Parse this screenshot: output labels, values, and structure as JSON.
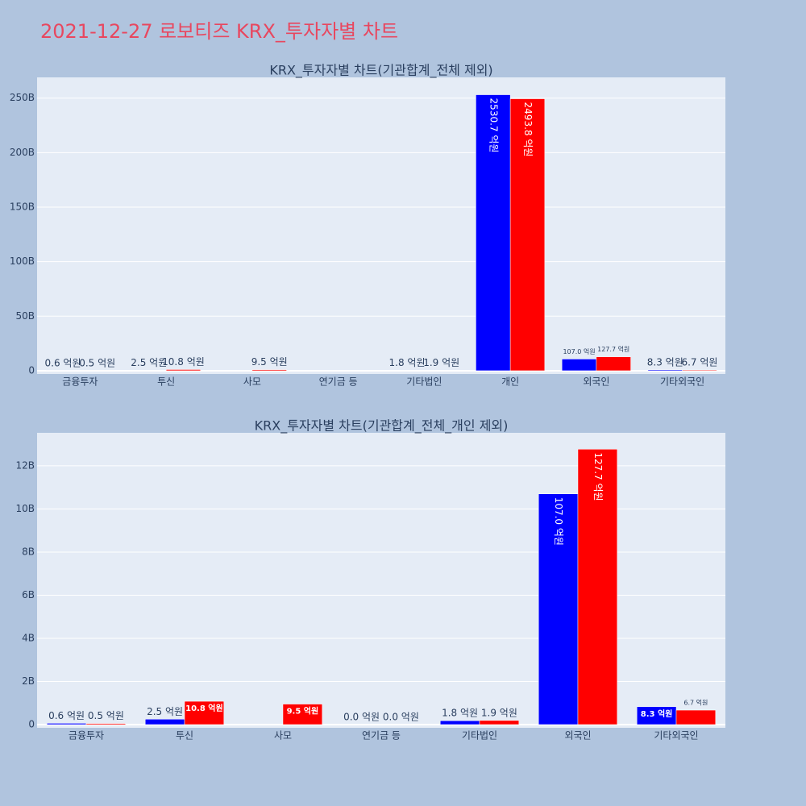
{
  "title": "2021-12-27 로보티즈 KRX_투자자별 차트",
  "chart_data": [
    {
      "type": "bar",
      "title": "KRX_투자자별 차트(기관합계_전체 제외)",
      "categories": [
        "금융투자",
        "투신",
        "사모",
        "연기금 등",
        "기타법인",
        "개인",
        "외국인",
        "기타외국인"
      ],
      "series": [
        {
          "color": "#0000ff",
          "values": [
            60000000,
            250000000,
            null,
            null,
            180000000,
            253070000000,
            10700000000,
            830000000
          ],
          "value_labels": [
            "0.6 억원",
            "2.5 억원",
            null,
            null,
            "1.8 억원",
            "2530.7 억원",
            "107.0 억원",
            "8.3 억원"
          ]
        },
        {
          "color": "#ff0000",
          "values": [
            50000000,
            1080000000,
            950000000,
            null,
            190000000,
            249380000000,
            12770000000,
            670000000
          ],
          "value_labels": [
            "0.5 억원",
            "10.8 억원",
            "9.5 억원",
            null,
            "1.9 억원",
            "2493.8 억원",
            "127.7 억원",
            "6.7 억원"
          ]
        }
      ],
      "ylim": [
        -3000000000,
        269000000000
      ],
      "yticks": [
        0,
        {
          "value": 50000000000,
          "label": "50B"
        },
        {
          "value": 100000000000,
          "label": "100B"
        },
        {
          "value": 150000000000,
          "label": "150B"
        },
        {
          "value": 200000000000,
          "label": "200B"
        },
        {
          "value": 250000000000,
          "label": "250B"
        }
      ],
      "grid": true
    },
    {
      "type": "bar",
      "title": "KRX_투자자별 차트(기관합계_전체_개인 제외)",
      "categories": [
        "금융투자",
        "투신",
        "사모",
        "연기금 등",
        "기타법인",
        "외국인",
        "기타외국인"
      ],
      "series": [
        {
          "color": "#0000ff",
          "values": [
            60000000,
            250000000,
            null,
            0,
            180000000,
            10700000000,
            830000000
          ],
          "value_labels": [
            "0.6 억원",
            "2.5 억원",
            null,
            "0.0 억원",
            "1.8 억원",
            "107.0 억원",
            "8.3 억원"
          ]
        },
        {
          "color": "#ff0000",
          "values": [
            50000000,
            1080000000,
            950000000,
            0,
            190000000,
            12770000000,
            670000000
          ],
          "value_labels": [
            "0.5 억원",
            "10.8 억원",
            "9.5 억원",
            "0.0 억원",
            "1.9 억원",
            "127.7 억원",
            "6.7 억원"
          ]
        }
      ],
      "ylim": [
        -150000000,
        13530000000
      ],
      "yticks": [
        0,
        {
          "value": 2000000000,
          "label": "2B"
        },
        {
          "value": 4000000000,
          "label": "4B"
        },
        {
          "value": 6000000000,
          "label": "6B"
        },
        {
          "value": 8000000000,
          "label": "8B"
        },
        {
          "value": 10000000000,
          "label": "10B"
        },
        {
          "value": 12000000000,
          "label": "12B"
        }
      ],
      "grid": true
    }
  ]
}
